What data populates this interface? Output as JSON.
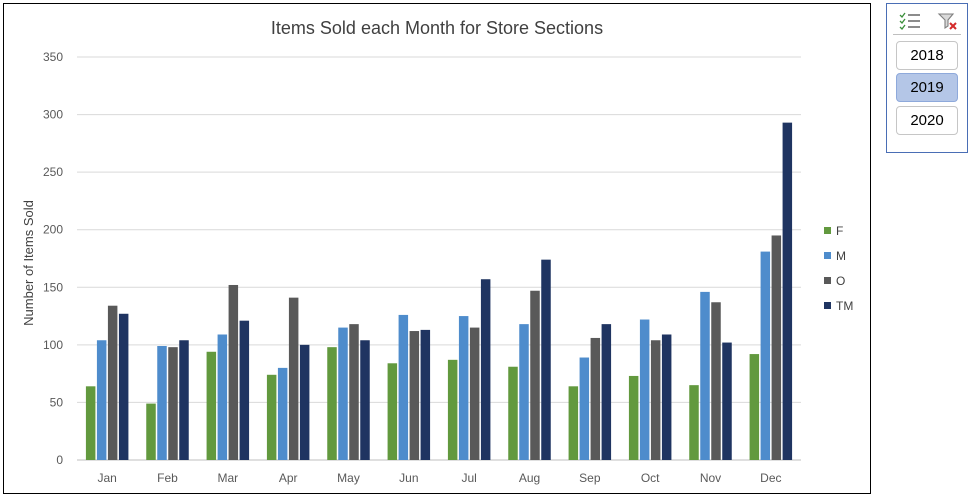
{
  "chart_data": {
    "type": "bar",
    "title": "Items Sold each Month for Store Sections",
    "xlabel": "",
    "ylabel": "Number of Items Sold",
    "ylim": [
      0,
      350
    ],
    "yticks": [
      0,
      50,
      100,
      150,
      200,
      250,
      300,
      350
    ],
    "grid": true,
    "legend_position": "right",
    "categories": [
      "Jan",
      "Feb",
      "Mar",
      "Apr",
      "May",
      "Jun",
      "Jul",
      "Aug",
      "Sep",
      "Oct",
      "Nov",
      "Dec"
    ],
    "series": [
      {
        "name": "F",
        "color": "#62993e",
        "values": [
          64,
          49,
          94,
          74,
          98,
          84,
          87,
          81,
          64,
          73,
          65,
          92
        ]
      },
      {
        "name": "M",
        "color": "#4e8ccc",
        "values": [
          104,
          99,
          109,
          80,
          115,
          126,
          125,
          118,
          89,
          122,
          146,
          181
        ]
      },
      {
        "name": "O",
        "color": "#595959",
        "values": [
          134,
          98,
          152,
          141,
          118,
          112,
          115,
          147,
          106,
          104,
          137,
          195
        ]
      },
      {
        "name": "TM",
        "color": "#1f3461",
        "values": [
          127,
          104,
          121,
          100,
          104,
          113,
          157,
          174,
          118,
          109,
          102,
          293
        ]
      }
    ]
  },
  "slicer": {
    "items": [
      {
        "label": "2018",
        "selected": false
      },
      {
        "label": "2019",
        "selected": true
      },
      {
        "label": "2020",
        "selected": false
      }
    ],
    "multiselect_icon": "multi-select-icon",
    "clear_filter_icon": "clear-filter-icon"
  }
}
